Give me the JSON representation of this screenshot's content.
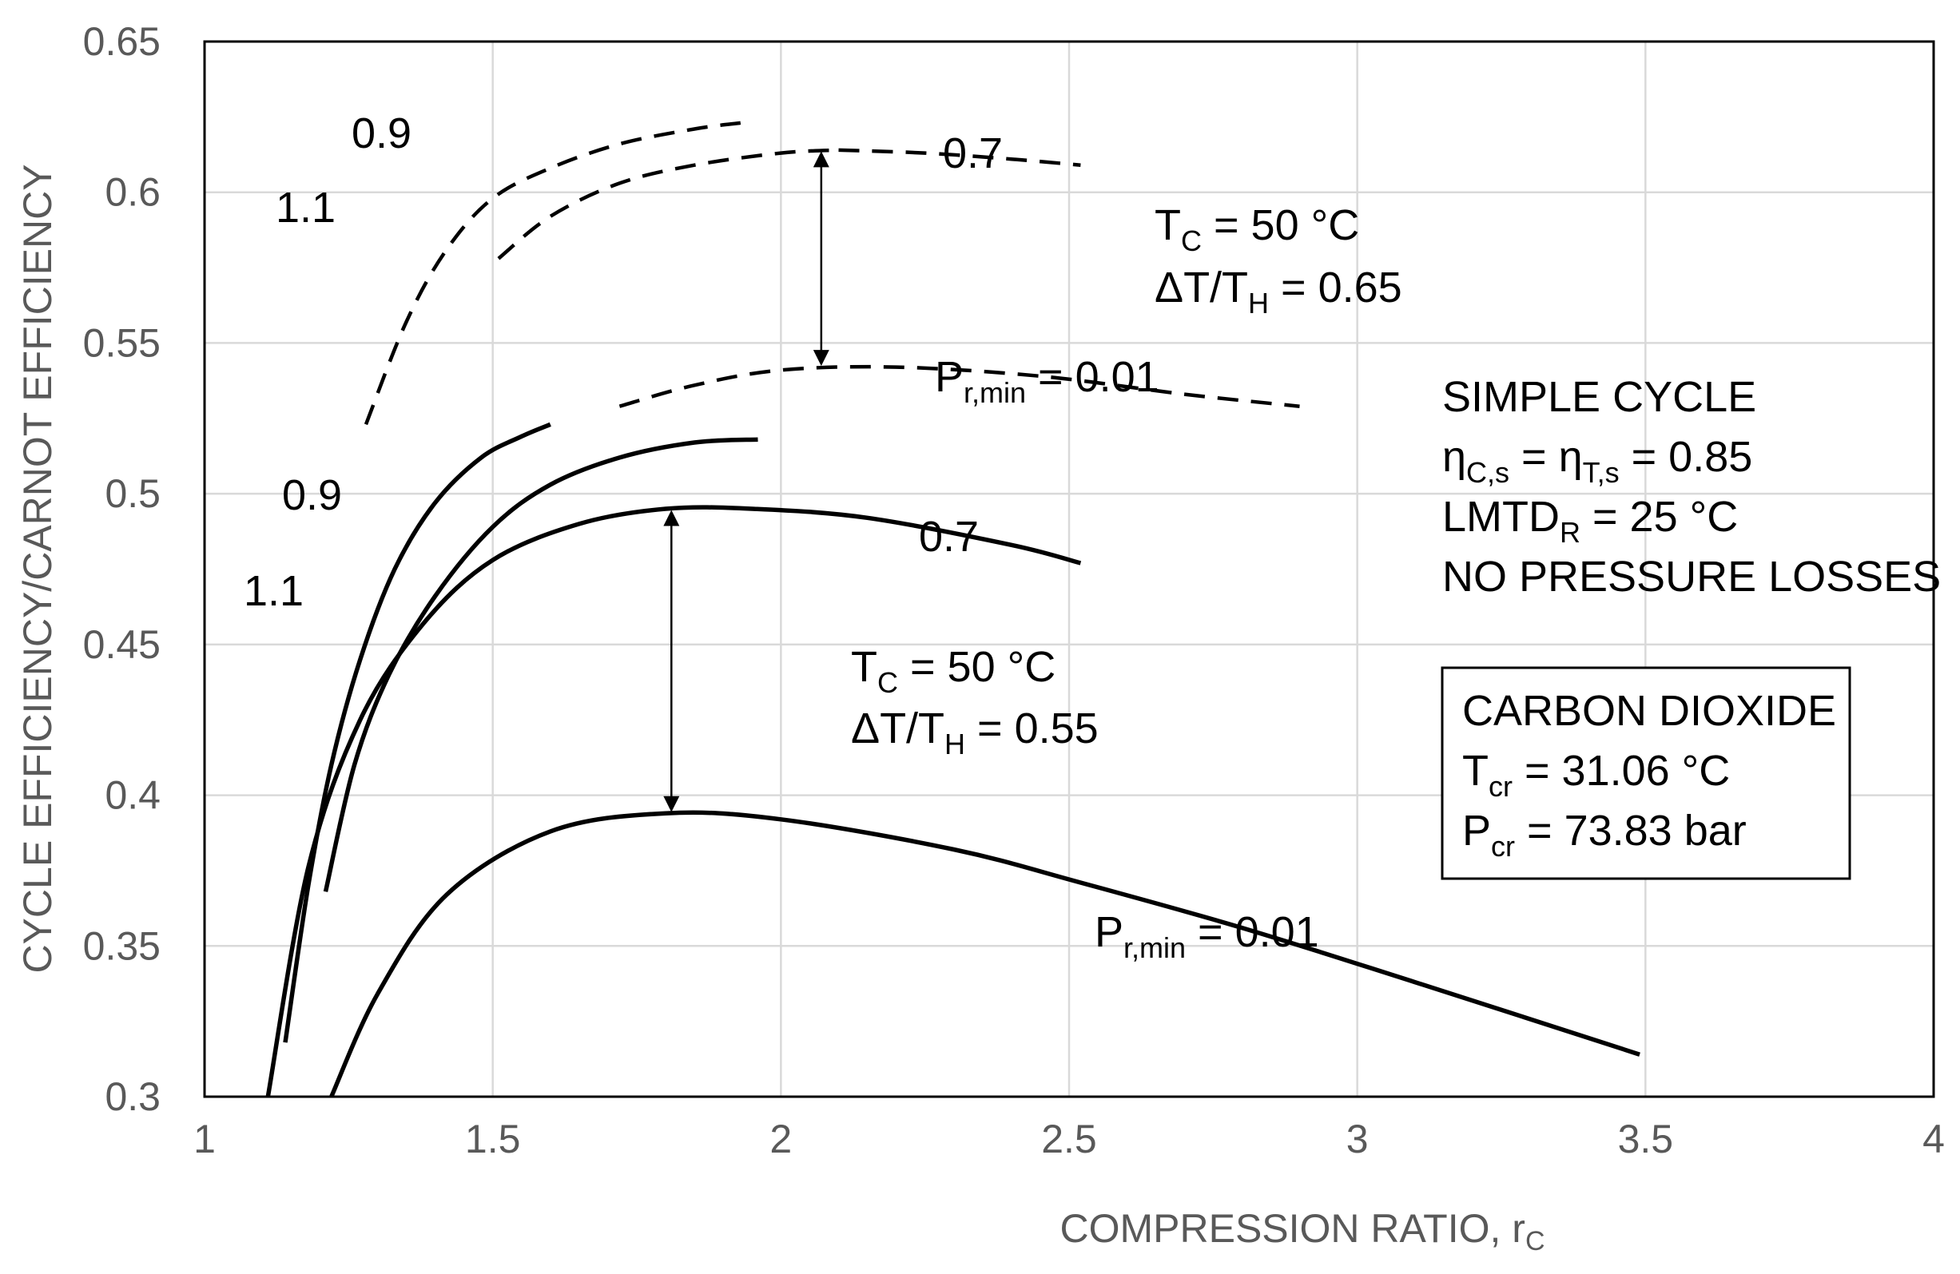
{
  "chart_data": {
    "type": "line",
    "title": "",
    "xlabel": "COMPRESSION RATIO, r",
    "xlabel_sub": "C",
    "ylabel": "CYCLE EFFICIENCY/CARNOT EFFICIENCY",
    "xlim": [
      1,
      4
    ],
    "ylim": [
      0.3,
      0.65
    ],
    "xticks": [
      1,
      1.5,
      2,
      2.5,
      3,
      3.5,
      4
    ],
    "xtick_labels": [
      "1",
      "1.5",
      "2",
      "2.5",
      "3",
      "3.5",
      "4"
    ],
    "yticks": [
      0.3,
      0.35,
      0.4,
      0.45,
      0.5,
      0.55,
      0.6,
      0.65
    ],
    "ytick_labels": [
      "0.3",
      "0.35",
      "0.4",
      "0.45",
      "0.5",
      "0.55",
      "0.6",
      "0.65"
    ],
    "grid": true,
    "series": [
      {
        "name": "dT/TH=0.65, Pr,min=0.9",
        "style": "dashed",
        "x": [
          1.28,
          1.35,
          1.42,
          1.5,
          1.6,
          1.72,
          1.85,
          1.93
        ],
        "y": [
          0.523,
          0.557,
          0.581,
          0.598,
          0.608,
          0.616,
          0.621,
          0.623
        ]
      },
      {
        "name": "dT/TH=0.65, Pr,min=1.1",
        "style": "dashed",
        "x": [
          1.51,
          1.6,
          1.72,
          1.85,
          2.0,
          2.1
        ],
        "y": [
          0.578,
          0.592,
          0.603,
          0.609,
          0.613,
          0.614
        ]
      },
      {
        "name": "dT/TH=0.65, Pr,min=0.7",
        "style": "dashed",
        "x": [
          2.1,
          2.25,
          2.4,
          2.52
        ],
        "y": [
          0.614,
          0.613,
          0.611,
          0.609
        ]
      },
      {
        "name": "dT/TH=0.65, Pr,min=0.01",
        "style": "dashed",
        "x": [
          1.72,
          1.85,
          2.0,
          2.2,
          2.45,
          2.7,
          2.9
        ],
        "y": [
          0.529,
          0.536,
          0.541,
          0.542,
          0.539,
          0.533,
          0.529
        ]
      },
      {
        "name": "dT/TH=0.55, Pr,min=1.1",
        "style": "solid",
        "x": [
          1.14,
          1.18,
          1.22,
          1.27,
          1.33,
          1.4,
          1.48,
          1.55,
          1.6
        ],
        "y": [
          0.318,
          0.37,
          0.41,
          0.445,
          0.475,
          0.497,
          0.512,
          0.519,
          0.523
        ]
      },
      {
        "name": "dT/TH=0.55, Pr,min=0.9",
        "style": "solid",
        "x": [
          1.21,
          1.26,
          1.32,
          1.4,
          1.5,
          1.6,
          1.72,
          1.85,
          1.96
        ],
        "y": [
          0.368,
          0.41,
          0.44,
          0.466,
          0.489,
          0.503,
          0.512,
          0.517,
          0.518
        ]
      },
      {
        "name": "dT/TH=0.55, Pr,min=0.7",
        "style": "solid",
        "x": [
          1.11,
          1.18,
          1.27,
          1.38,
          1.5,
          1.65,
          1.8,
          1.95,
          2.15,
          2.4,
          2.52
        ],
        "y": [
          0.3,
          0.376,
          0.425,
          0.457,
          0.478,
          0.49,
          0.495,
          0.495,
          0.492,
          0.483,
          0.477
        ]
      },
      {
        "name": "dT/TH=0.55, Pr,min=0.01",
        "style": "solid",
        "x": [
          1.22,
          1.3,
          1.42,
          1.6,
          1.8,
          2.0,
          2.3,
          2.52,
          2.8,
          3.1,
          3.49
        ],
        "y": [
          0.3,
          0.334,
          0.367,
          0.388,
          0.394,
          0.392,
          0.382,
          0.371,
          0.356,
          0.338,
          0.314
        ]
      }
    ],
    "curve_labels": {
      "upper_09": "0.9",
      "upper_11": "1.1",
      "upper_07": "0.7",
      "upper_pr_pre": "P",
      "upper_pr_sub": "r,min",
      "upper_pr_post": " = 0.01",
      "lower_09": "0.9",
      "lower_11": "1.1",
      "lower_07": "0.7",
      "lower_pr_pre": "P",
      "lower_pr_sub": "r,min",
      "lower_pr_post": " = 0.01"
    },
    "annotations": {
      "upper_tc_pre": "T",
      "upper_tc_sub": "C",
      "upper_tc_post": " = 50 °C",
      "upper_dt_pre": "ΔT/T",
      "upper_dt_sub": "H",
      "upper_dt_post": " = 0.65",
      "lower_tc_pre": "T",
      "lower_tc_sub": "C",
      "lower_tc_post": " = 50 °C",
      "lower_dt_pre": "ΔT/T",
      "lower_dt_sub": "H",
      "lower_dt_post": " = 0.55",
      "cycle_title": "SIMPLE CYCLE",
      "eta_a": "η",
      "eta_a_sub": "C,s",
      "eta_mid": " = η",
      "eta_b_sub": "T,s",
      "eta_post": " = 0.85",
      "lmtd_pre": "LMTD",
      "lmtd_sub": "R",
      "lmtd_post": " = 25 °C",
      "losses": "NO PRESSURE LOSSES"
    },
    "fluid_box": {
      "title": "CARBON DIOXIDE",
      "tcr_pre": "T",
      "tcr_sub": "cr",
      "tcr_post": " = 31.06 °C",
      "pcr_pre": "P",
      "pcr_sub": "cr",
      "pcr_post": " = 73.83 bar"
    },
    "arrows": [
      {
        "x": 2.07,
        "y_from": 0.542,
        "y_to": 0.614
      },
      {
        "x": 1.81,
        "y_from": 0.394,
        "y_to": 0.495
      }
    ]
  }
}
